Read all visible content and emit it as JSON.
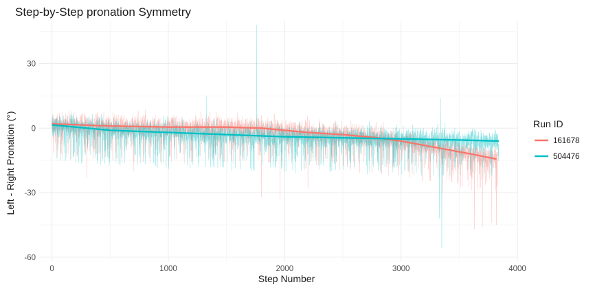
{
  "chart_data": {
    "type": "line",
    "title": "Step-by-Step pronation Symmetry",
    "xlabel": "Step Number",
    "ylabel": "Left - Right Pronation (°)",
    "xlim": [
      -110,
      4000
    ],
    "ylim": [
      -62,
      50
    ],
    "x_ticks": [
      0,
      1000,
      2000,
      3000,
      4000
    ],
    "y_ticks": [
      -60,
      -30,
      0,
      30
    ],
    "grid": true,
    "legend": {
      "title": "Run ID",
      "position": "right"
    },
    "series": [
      {
        "name": "161678",
        "color": "#F8766D",
        "n_steps": 3830,
        "trend": {
          "x": [
            0,
            500,
            1000,
            1500,
            1800,
            2000,
            2200,
            2500,
            2800,
            3000,
            3200,
            3400,
            3600,
            3830
          ],
          "y": [
            2,
            1,
            0.5,
            0.5,
            0,
            -1,
            -2,
            -3,
            -4.5,
            -6,
            -8,
            -10,
            -12,
            -14.5
          ]
        },
        "spikes": [
          {
            "x": 300,
            "y": -23
          },
          {
            "x": 700,
            "y": -20
          },
          {
            "x": 1800,
            "y": -32
          },
          {
            "x": 1960,
            "y": -33
          },
          {
            "x": 2200,
            "y": -28
          },
          {
            "x": 3360,
            "y": -30
          },
          {
            "x": 3630,
            "y": -47
          },
          {
            "x": 3700,
            "y": -46
          },
          {
            "x": 3780,
            "y": -44
          },
          {
            "x": 3820,
            "y": -45
          }
        ]
      },
      {
        "name": "504476",
        "color": "#00BFC4",
        "n_steps": 3840,
        "trend": {
          "x": [
            0,
            500,
            1000,
            1500,
            2000,
            2500,
            3000,
            3500,
            3840
          ],
          "y": [
            1.5,
            -1,
            -2,
            -3,
            -4,
            -4.5,
            -5,
            -5.5,
            -6
          ]
        },
        "spikes": [
          {
            "x": 1760,
            "y": 48
          },
          {
            "x": 1330,
            "y": 15
          },
          {
            "x": 3330,
            "y": -42
          },
          {
            "x": 3350,
            "y": -56
          },
          {
            "x": 3340,
            "y": 14
          }
        ]
      }
    ]
  }
}
